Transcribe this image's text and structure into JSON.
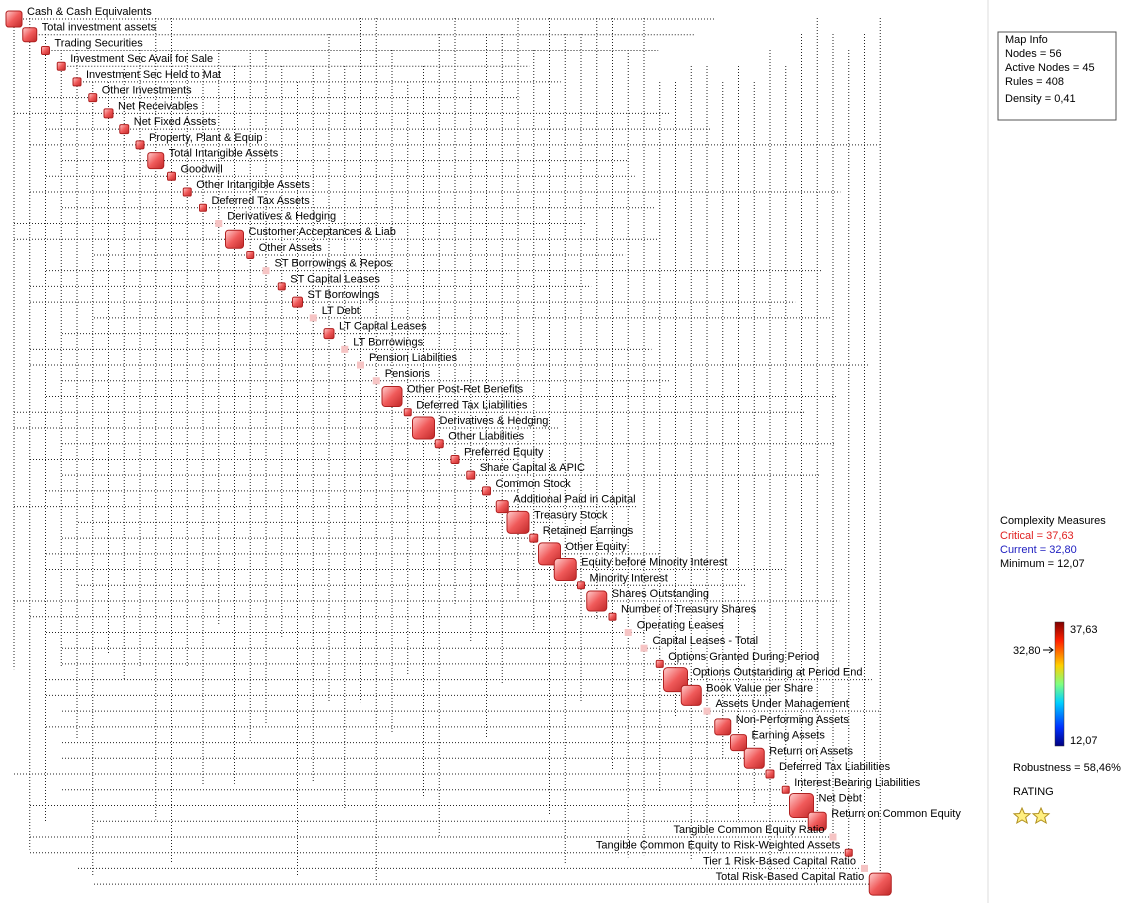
{
  "nodes": [
    {
      "label": "Cash & Cash Equivalents"
    },
    {
      "label": "Total investment assets"
    },
    {
      "label": "Trading Securities"
    },
    {
      "label": "Investment Sec Avail for Sale"
    },
    {
      "label": "Investment Sec Held to Mat"
    },
    {
      "label": "Other Investments"
    },
    {
      "label": "Net Receivables"
    },
    {
      "label": "Net Fixed Assets"
    },
    {
      "label": "Property, Plant & Equip"
    },
    {
      "label": "Total Intangible Assets"
    },
    {
      "label": "Goodwill"
    },
    {
      "label": "Other Intangible Assets"
    },
    {
      "label": "Deferred Tax Assets"
    },
    {
      "label": "Derivatives & Hedging"
    },
    {
      "label": "Customer Acceptances & Liab"
    },
    {
      "label": "Other Assets"
    },
    {
      "label": "ST Borrowings & Repos"
    },
    {
      "label": "ST Capital Leases"
    },
    {
      "label": "ST Borrowings"
    },
    {
      "label": "LT Debt"
    },
    {
      "label": "LT Capital Leases"
    },
    {
      "label": "LT Borrowings"
    },
    {
      "label": "Pension Liabilities"
    },
    {
      "label": "Pensions"
    },
    {
      "label": "Other Post-Ret Benefits"
    },
    {
      "label": "Deferred Tax Liabilities"
    },
    {
      "label": "Derivatives & Hedging"
    },
    {
      "label": "Other Liabilities"
    },
    {
      "label": "Preferred Equity"
    },
    {
      "label": "Share Capital & APIC"
    },
    {
      "label": "Common Stock"
    },
    {
      "label": "Additional Paid in Capital"
    },
    {
      "label": "Treasury Stock"
    },
    {
      "label": "Retained Earnings"
    },
    {
      "label": "Other Equity"
    },
    {
      "label": "Equity before Minority Interest"
    },
    {
      "label": "Minority Interest"
    },
    {
      "label": "Shares Outstanding"
    },
    {
      "label": "Number of Treasury Shares"
    },
    {
      "label": "Operating Leases"
    },
    {
      "label": "Capital Leases - Total"
    },
    {
      "label": "Options Granted During Period"
    },
    {
      "label": "Options Outstanding at Period End"
    },
    {
      "label": "Book Value per Share"
    },
    {
      "label": "Assets Under Management"
    },
    {
      "label": "Non-Performing Assets"
    },
    {
      "label": "Earning Assets"
    },
    {
      "label": "Return on Assets"
    },
    {
      "label": "Deferred Tax Liabilities"
    },
    {
      "label": "Interest Bearing Liabilities"
    },
    {
      "label": "Net Debt"
    },
    {
      "label": "Return on Common Equity"
    },
    {
      "label": "Tangible Common Equity Ratio"
    },
    {
      "label": "Tangible Common Equity to Risk-Weighted Assets"
    },
    {
      "label": "Tier 1 Risk-Based Capital Ratio"
    },
    {
      "label": "Total Risk-Based Capital Ratio"
    }
  ],
  "map_info": {
    "title": "Map Info",
    "lines": [
      "Nodes = 56",
      "Active Nodes = 45",
      "Rules = 408",
      "Density = 0,41"
    ]
  },
  "complexity": {
    "title": "Complexity Measures",
    "critical": "Critical = 37,63",
    "current": "Current = 32,80",
    "minimum": "Minimum = 12,07"
  },
  "scale": {
    "max": "37,63",
    "current": "32,80",
    "min": "12,07"
  },
  "robustness": "Robustness = 58,46%",
  "rating": "RATING"
}
